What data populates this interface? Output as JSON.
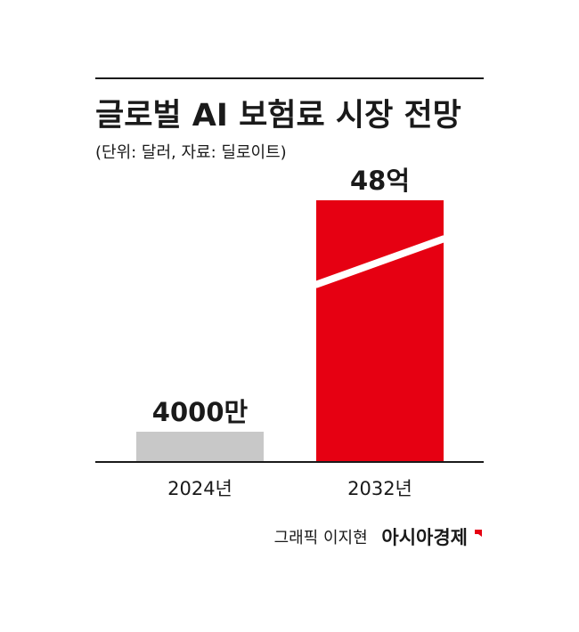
{
  "chart_data": {
    "type": "bar",
    "title": "글로벌 AI 보험료 시장 전망",
    "subtitle": "(단위: 달러, 자료: 딜로이트)",
    "categories": [
      "2024년",
      "2032년"
    ],
    "values": [
      40000000,
      4800000000
    ],
    "value_labels": [
      "4000만",
      "48억"
    ],
    "colors": [
      "#c8c8c8",
      "#e60012"
    ],
    "axis_break": true,
    "credit": "그래픽 이지현",
    "source": "아시아경제"
  }
}
